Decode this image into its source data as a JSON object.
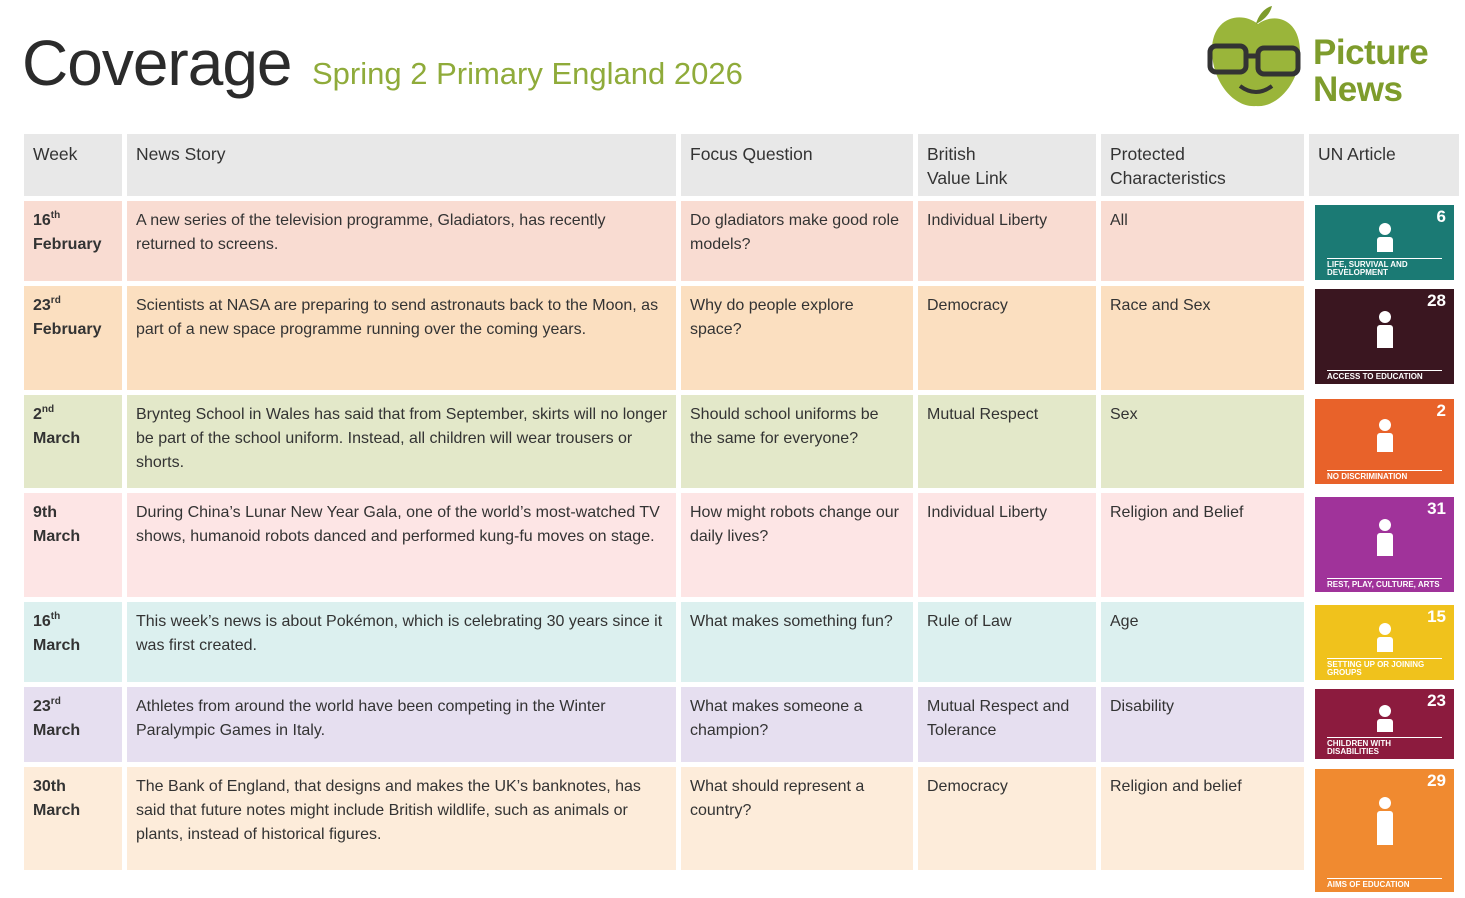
{
  "header": {
    "title": "Coverage",
    "subtitle": "Spring 2 Primary England 2026",
    "logo": [
      "Picture",
      "News"
    ]
  },
  "table": {
    "columns": [
      [
        "Week"
      ],
      [
        "News Story"
      ],
      [
        "Focus Question"
      ],
      [
        "British",
        "Value Link"
      ],
      [
        "Protected",
        "Characteristics"
      ],
      [
        "UN Article"
      ]
    ],
    "rows": [
      {
        "week": {
          "day": "16",
          "suffix": "th",
          "month": "February"
        },
        "news": "A new series of the television programme, Gladiators, has recently returned to screens.",
        "focus": "Do gladiators make good role models?",
        "british_value": "Individual  Liberty",
        "protected": "All",
        "un_article": {
          "number": "6",
          "caption": "LIFE, SURVIVAL AND DEVELOPMENT"
        }
      },
      {
        "week": {
          "day": "23",
          "suffix": "rd",
          "month": "February"
        },
        "news": "Scientists at NASA are preparing to send astronauts back to the Moon, as part of a new space programme running over the coming years.",
        "focus": "Why do people explore space?",
        "british_value": "Democracy",
        "protected": "Race and Sex",
        "un_article": {
          "number": "28",
          "caption": "ACCESS TO EDUCATION"
        }
      },
      {
        "week": {
          "day": "2",
          "suffix": "nd",
          "month": "March"
        },
        "news": "Brynteg School in Wales has said that from September, skirts will no longer be part of the school uniform. Instead, all children will wear trousers or shorts.",
        "focus": "Should school uniforms be the same for everyone?",
        "british_value": "Mutual Respect",
        "protected": "Sex",
        "un_article": {
          "number": "2",
          "caption": "NO DISCRIMINATION"
        }
      },
      {
        "week": {
          "day": "9th",
          "month": "March"
        },
        "news": "During China’s Lunar New Year Gala, one of the world’s most-watched TV shows, humanoid robots danced and performed kung-fu moves on stage.",
        "focus": "How might robots change our daily lives?",
        "british_value": "Individual Liberty",
        "protected": "Religion and Belief",
        "un_article": {
          "number": "31",
          "caption": "REST, PLAY, CULTURE, ARTS"
        }
      },
      {
        "week": {
          "day": "16",
          "suffix": "th",
          "month": "March"
        },
        "news": "This week’s news is about Pokémon, which is celebrating 30 years since it was first created.",
        "focus": "What makes something fun?",
        "british_value": "Rule of Law",
        "protected": "Age",
        "un_article": {
          "number": "15",
          "caption": "SETTING UP OR JOINING GROUPS"
        }
      },
      {
        "week": {
          "day": "23",
          "suffix": "rd",
          "month": "March"
        },
        "news": "Athletes from around the world have been competing in the Winter Paralympic Games in Italy.",
        "focus": "What makes someone a champion?",
        "british_value": "Mutual Respect and Tolerance",
        "protected": "Disability",
        "un_article": {
          "number": "23",
          "caption": "CHILDREN WITH DISABILITIES"
        }
      },
      {
        "week": {
          "day": "30th",
          "month": "March"
        },
        "news": "The Bank of England, that designs and makes the UK’s banknotes, has said that future notes might include British wildlife, such as animals or plants, instead of historical figures.",
        "focus": "What should represent a country?",
        "british_value": "Democracy",
        "protected": "Religion and belief",
        "un_article": {
          "number": "29",
          "caption": "AIMS OF EDUCATION"
        }
      }
    ]
  }
}
